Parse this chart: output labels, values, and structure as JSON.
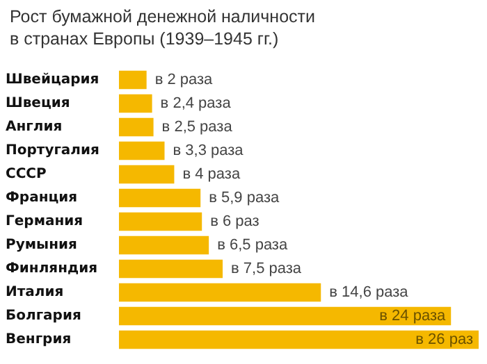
{
  "chart_data": {
    "type": "bar",
    "orientation": "horizontal",
    "title": "Рост бумажной денежной наличности в странах Европы (1939–1945 гг.)",
    "categories": [
      "Швейцария",
      "Швеция",
      "Англия",
      "Португалия",
      "СССР",
      "Франция",
      "Германия",
      "Румыния",
      "Финляндия",
      "Италия",
      "Болгария",
      "Венгрия"
    ],
    "values": [
      2,
      2.4,
      2.5,
      3.3,
      4,
      5.9,
      6,
      6.5,
      7.5,
      14.6,
      24,
      26
    ],
    "value_labels": [
      "в 2 раза",
      "в 2,4 раза",
      "в 2,5 раза",
      "в 3,3 раза",
      "в 4 раза",
      "в 5,9 раза",
      "в 6 раз",
      "в 6,5 раза",
      "в 7,5 раза",
      "в 14,6 раза",
      "в 24 раза",
      "в 26 раз"
    ],
    "color": "#f5b800",
    "xlim": [
      0,
      26
    ]
  }
}
